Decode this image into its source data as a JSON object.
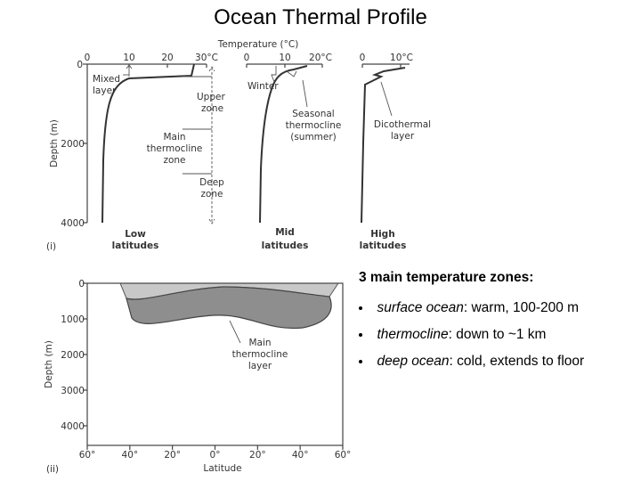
{
  "title": "Ocean Thermal Profile",
  "figure_i": {
    "panel_label": "(i)",
    "x_axis_title": "Temperature (°C)",
    "y_axis_title": "Depth (m)",
    "y_ticks": [
      "0",
      "2000",
      "4000"
    ],
    "panels": [
      {
        "x_ticks": [
          "0",
          "10",
          "20",
          "30°C"
        ],
        "label": [
          "Low",
          "latitudes"
        ]
      },
      {
        "x_ticks": [
          "0",
          "10",
          "20°C"
        ],
        "label": [
          "Mid",
          "latitudes"
        ]
      },
      {
        "x_ticks": [
          "0",
          "10°C"
        ],
        "label": [
          "High",
          "latitudes"
        ]
      }
    ],
    "annotations": {
      "mixed_layer": [
        "Mixed",
        "layer"
      ],
      "upper_zone": [
        "Upper",
        "zone"
      ],
      "main_thermocline_zone": [
        "Main",
        "thermocline",
        "zone"
      ],
      "deep_zone": [
        "Deep",
        "zone"
      ],
      "winter": "Winter",
      "seasonal_thermocline": [
        "Seasonal",
        "thermocline",
        "(summer)"
      ],
      "dicothermal_layer": [
        "Dicothermal",
        "layer"
      ]
    }
  },
  "figure_ii": {
    "panel_label": "(ii)",
    "y_axis_title": "Depth (m)",
    "x_axis_title": "Latitude",
    "y_ticks": [
      "0",
      "1000",
      "2000",
      "3000",
      "4000"
    ],
    "x_ticks": [
      "60°",
      "40°",
      "20°",
      "0°",
      "20°",
      "40°",
      "60°"
    ],
    "annotation": [
      "Main",
      "thermocline",
      "layer"
    ]
  },
  "summary": {
    "heading": "3 main temperature zones:",
    "bullets": [
      {
        "term": "surface ocean",
        "text": ": warm, 100-200 m"
      },
      {
        "term": "thermocline",
        "text": ": down to ~1 km"
      },
      {
        "term": "deep ocean",
        "text": ": cold, extends to floor"
      }
    ]
  }
}
